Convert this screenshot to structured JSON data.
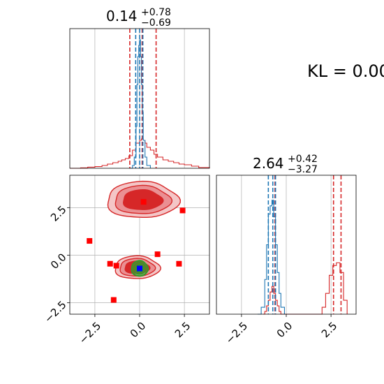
{
  "kl_label": "KL = 0.00",
  "colors": {
    "red": "#d62728",
    "blue": "#1f77b4",
    "green": "#2ca02c",
    "marker_red": "#ff0000",
    "marker_blue": "#0000ff",
    "grid": "#b0b0b0"
  },
  "chart_data": [
    {
      "type": "histogram",
      "panel": "marginal-param-1",
      "title": {
        "value": "0.14",
        "upper": "+0.78",
        "lower": "−0.69"
      },
      "xlim": [
        -3.9,
        3.9
      ],
      "grid": true,
      "red_quantiles": [
        -0.55,
        0.14,
        0.92
      ],
      "blue_quantiles": [
        -0.22,
        0.0,
        0.18
      ],
      "series": [
        {
          "color": "red",
          "x": [
            -3.9,
            -3.3,
            -2.9,
            -2.5,
            -2.1,
            -1.8,
            -1.5,
            -1.2,
            -1.0,
            -0.8,
            -0.6,
            -0.4,
            -0.2,
            0.0,
            0.1,
            0.2,
            0.3,
            0.4,
            0.6,
            0.8,
            1.0,
            1.3,
            1.6,
            1.9,
            2.2,
            2.5,
            2.9,
            3.3,
            3.9
          ],
          "y": [
            0.0,
            0.003,
            0.008,
            0.012,
            0.02,
            0.03,
            0.04,
            0.05,
            0.06,
            0.07,
            0.09,
            0.13,
            0.18,
            0.2,
            0.21,
            0.2,
            0.18,
            0.15,
            0.13,
            0.1,
            0.08,
            0.06,
            0.05,
            0.04,
            0.03,
            0.025,
            0.015,
            0.005,
            0.0
          ]
        },
        {
          "color": "blue",
          "x": [
            -0.6,
            -0.4,
            -0.3,
            -0.2,
            -0.15,
            -0.1,
            -0.05,
            0.0,
            0.05,
            0.1,
            0.15,
            0.2,
            0.3,
            0.4,
            0.6
          ],
          "y": [
            0.0,
            0.02,
            0.08,
            0.3,
            0.6,
            0.8,
            0.88,
            0.92,
            0.8,
            0.6,
            0.4,
            0.2,
            0.08,
            0.02,
            0.0
          ]
        }
      ]
    },
    {
      "type": "histogram",
      "panel": "marginal-param-2",
      "title": {
        "value": "2.64",
        "upper": "+0.42",
        "lower": "−3.27"
      },
      "xlim": [
        -3.9,
        3.9
      ],
      "xticks": [
        "−2.5",
        "0.0",
        "2.5"
      ],
      "grid": true,
      "red_quantiles": [
        -0.63,
        2.64,
        3.06
      ],
      "blue_quantiles": [
        -1.0,
        -0.75,
        -0.6
      ],
      "series": [
        {
          "color": "red",
          "x": [
            -1.3,
            -1.2,
            -1.1,
            -1.0,
            -0.9,
            -0.8,
            -0.7,
            -0.6,
            -0.5,
            -0.4,
            -0.3,
            0.0,
            1.0,
            1.8,
            2.0,
            2.2,
            2.4,
            2.6,
            2.8,
            3.0,
            3.2,
            3.4
          ],
          "y": [
            0.0,
            0.02,
            0.06,
            0.1,
            0.16,
            0.2,
            0.15,
            0.1,
            0.06,
            0.02,
            0.0,
            0.0,
            0.0,
            0.0,
            0.05,
            0.15,
            0.28,
            0.35,
            0.37,
            0.3,
            0.1,
            0.0
          ]
        },
        {
          "color": "blue",
          "x": [
            -1.6,
            -1.4,
            -1.2,
            -1.1,
            -1.0,
            -0.9,
            -0.8,
            -0.7,
            -0.6,
            -0.5,
            -0.4,
            -0.3,
            -0.1
          ],
          "y": [
            0.0,
            0.05,
            0.25,
            0.5,
            0.72,
            0.78,
            0.82,
            0.7,
            0.5,
            0.3,
            0.15,
            0.05,
            0.0
          ]
        }
      ]
    },
    {
      "type": "contour",
      "panel": "joint-param-1-param-2",
      "xlim": [
        -3.9,
        3.9
      ],
      "ylim": [
        -3.1,
        4.2
      ],
      "xticks": [
        "−2.5",
        "0.0",
        "2.5"
      ],
      "yticks": [
        "−2.5",
        "0.0",
        "2.5"
      ],
      "grid": true,
      "red_modes": [
        {
          "cx": 0.15,
          "cy": 2.9,
          "rx": 2.0,
          "ry": 0.95
        },
        {
          "cx": -0.15,
          "cy": -0.65,
          "rx": 1.25,
          "ry": 0.6
        }
      ],
      "green_mode": {
        "cx": 0.0,
        "cy": -0.7,
        "rx": 0.45,
        "ry": 0.4
      },
      "red_markers": [
        {
          "x": 0.22,
          "y": 2.8
        },
        {
          "x": 2.4,
          "y": 2.35
        },
        {
          "x": -2.8,
          "y": 0.75
        },
        {
          "x": 1.0,
          "y": 0.05
        },
        {
          "x": 2.2,
          "y": -0.45
        },
        {
          "x": -1.65,
          "y": -0.45
        },
        {
          "x": -1.3,
          "y": -0.55
        },
        {
          "x": -1.45,
          "y": -2.35
        }
      ],
      "blue_marker": {
        "x": 0.0,
        "y": -0.7
      }
    }
  ]
}
